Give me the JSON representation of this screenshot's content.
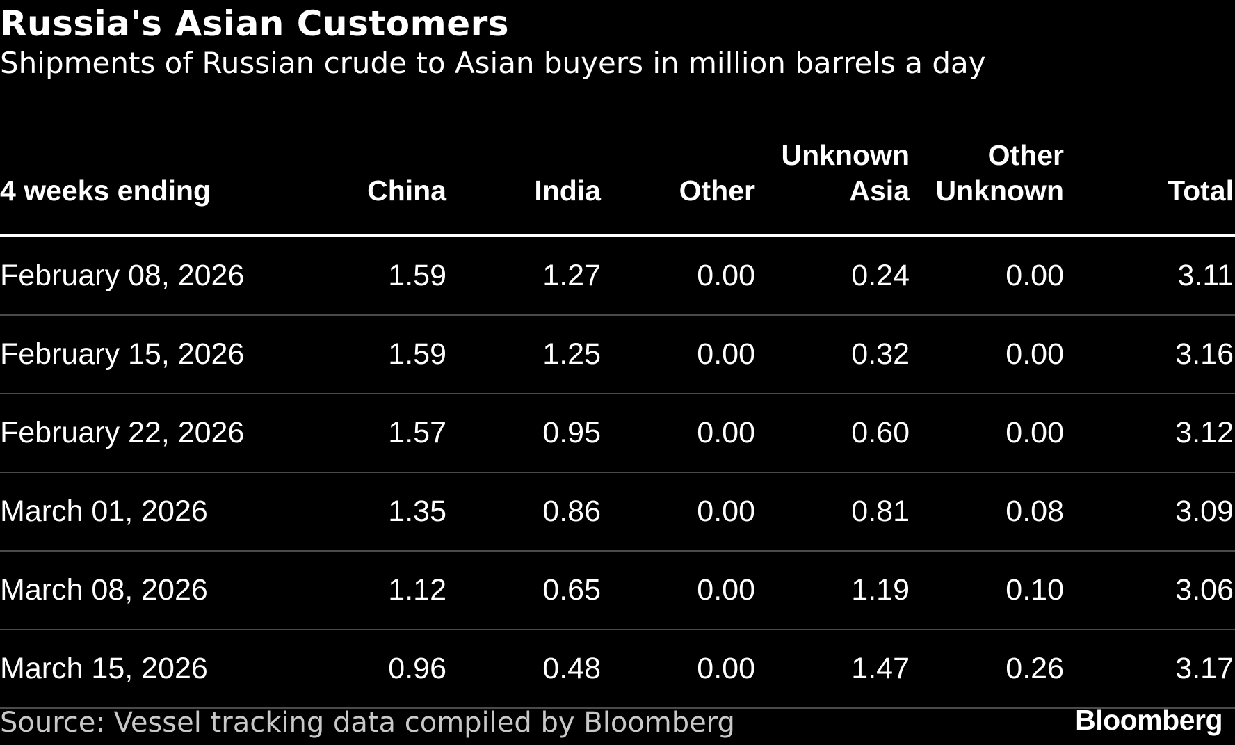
{
  "title": "Russia's Asian Customers",
  "subtitle": "Shipments of Russian crude to Asian buyers in million barrels a day",
  "table": {
    "columns": [
      "4 weeks ending",
      "China",
      "India",
      "Other",
      "Unknown Asia",
      "Other Unknown",
      "Total"
    ],
    "header_lines": [
      [
        "4 weeks ending"
      ],
      [
        "China"
      ],
      [
        "India"
      ],
      [
        "Other"
      ],
      [
        "Unknown",
        "Asia"
      ],
      [
        "Other",
        "Unknown"
      ],
      [
        "Total"
      ]
    ],
    "rows": [
      [
        "February 08, 2026",
        "1.59",
        "1.27",
        "0.00",
        "0.24",
        "0.00",
        "3.11"
      ],
      [
        "February 15, 2026",
        "1.59",
        "1.25",
        "0.00",
        "0.32",
        "0.00",
        "3.16"
      ],
      [
        "February 22, 2026",
        "1.57",
        "0.95",
        "0.00",
        "0.60",
        "0.00",
        "3.12"
      ],
      [
        "March 01, 2026",
        "1.35",
        "0.86",
        "0.00",
        "0.81",
        "0.08",
        "3.09"
      ],
      [
        "March 08, 2026",
        "1.12",
        "0.65",
        "0.00",
        "1.19",
        "0.10",
        "3.06"
      ],
      [
        "March 15, 2026",
        "0.96",
        "0.48",
        "0.00",
        "1.47",
        "0.26",
        "3.17"
      ]
    ]
  },
  "source": "Source: Vessel tracking data compiled by Bloomberg",
  "logo": "Bloomberg",
  "colors": {
    "background": "#000000",
    "text": "#ffffff",
    "source_text": "#c8c8c8",
    "header_rule": "#ffffff",
    "row_rule": "#4a4a4a"
  },
  "chart_data": {
    "type": "table",
    "title": "Russia's Asian Customers",
    "subtitle": "Shipments of Russian crude to Asian buyers in million barrels a day",
    "columns": [
      "4 weeks ending",
      "China",
      "India",
      "Other",
      "Unknown Asia",
      "Other Unknown",
      "Total"
    ],
    "rows": [
      [
        "February 08, 2026",
        1.59,
        1.27,
        0.0,
        0.24,
        0.0,
        3.11
      ],
      [
        "February 15, 2026",
        1.59,
        1.25,
        0.0,
        0.32,
        0.0,
        3.16
      ],
      [
        "February 22, 2026",
        1.57,
        0.95,
        0.0,
        0.6,
        0.0,
        3.12
      ],
      [
        "March 01, 2026",
        1.35,
        0.86,
        0.0,
        0.81,
        0.08,
        3.09
      ],
      [
        "March 08, 2026",
        1.12,
        0.65,
        0.0,
        1.19,
        0.1,
        3.06
      ],
      [
        "March 15, 2026",
        0.96,
        0.48,
        0.0,
        1.47,
        0.26,
        3.17
      ]
    ]
  }
}
